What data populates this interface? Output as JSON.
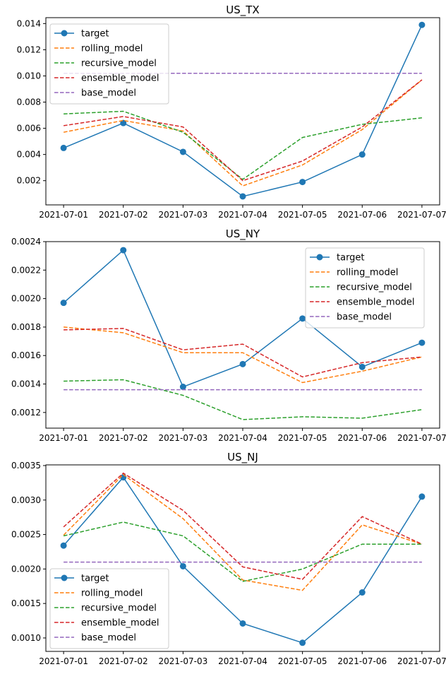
{
  "chart_data": [
    {
      "type": "line",
      "title": "US_TX",
      "legend_position": "upper-left",
      "x": [
        "2021-07-01",
        "2021-07-02",
        "2021-07-03",
        "2021-07-04",
        "2021-07-05",
        "2021-07-06",
        "2021-07-07"
      ],
      "ylim": [
        0.00015,
        0.01445
      ],
      "yticks": [
        0.002,
        0.004,
        0.006,
        0.008,
        0.01,
        0.012,
        0.014
      ],
      "ytick_labels": [
        "0.002",
        "0.004",
        "0.006",
        "0.008",
        "0.010",
        "0.012",
        "0.014"
      ],
      "series": [
        {
          "name": "target",
          "style": "solid-marker",
          "color": "#1f77b4",
          "values": [
            0.0045,
            0.0064,
            0.0042,
            0.0008,
            0.0019,
            0.004,
            0.0139
          ]
        },
        {
          "name": "rolling_model",
          "style": "dashed",
          "color": "#ff7f0e",
          "values": [
            0.0057,
            0.0066,
            0.0058,
            0.0016,
            0.0032,
            0.0059,
            0.0097
          ]
        },
        {
          "name": "recursive_model",
          "style": "dashed",
          "color": "#2ca02c",
          "values": [
            0.0071,
            0.0073,
            0.0057,
            0.0021,
            0.0053,
            0.0063,
            0.0068
          ]
        },
        {
          "name": "ensemble_model",
          "style": "dashed",
          "color": "#d62728",
          "values": [
            0.0062,
            0.0069,
            0.0061,
            0.002,
            0.0035,
            0.0061,
            0.0097
          ]
        },
        {
          "name": "base_model",
          "style": "dashed",
          "color": "#9467bd",
          "values": [
            0.0102,
            0.0102,
            0.0102,
            0.0102,
            0.0102,
            0.0102,
            0.0102
          ]
        }
      ]
    },
    {
      "type": "line",
      "title": "US_NY",
      "legend_position": "upper-right",
      "x": [
        "2021-07-01",
        "2021-07-02",
        "2021-07-03",
        "2021-07-04",
        "2021-07-05",
        "2021-07-06",
        "2021-07-07"
      ],
      "ylim": [
        0.00109,
        0.0024
      ],
      "yticks": [
        0.0012,
        0.0014,
        0.0016,
        0.0018,
        0.002,
        0.0022,
        0.0024
      ],
      "ytick_labels": [
        "0.0012",
        "0.0014",
        "0.0016",
        "0.0018",
        "0.0020",
        "0.0022",
        "0.0024"
      ],
      "series": [
        {
          "name": "target",
          "style": "solid-marker",
          "color": "#1f77b4",
          "values": [
            0.00197,
            0.00234,
            0.00138,
            0.00154,
            0.00186,
            0.00152,
            0.00169
          ]
        },
        {
          "name": "rolling_model",
          "style": "dashed",
          "color": "#ff7f0e",
          "values": [
            0.0018,
            0.00176,
            0.00162,
            0.00162,
            0.00141,
            0.00149,
            0.00159
          ]
        },
        {
          "name": "recursive_model",
          "style": "dashed",
          "color": "#2ca02c",
          "values": [
            0.00142,
            0.00143,
            0.00132,
            0.00115,
            0.00117,
            0.00116,
            0.00122
          ]
        },
        {
          "name": "ensemble_model",
          "style": "dashed",
          "color": "#d62728",
          "values": [
            0.00178,
            0.00179,
            0.00164,
            0.00168,
            0.00145,
            0.00155,
            0.00159
          ]
        },
        {
          "name": "base_model",
          "style": "dashed",
          "color": "#9467bd",
          "values": [
            0.00136,
            0.00136,
            0.00136,
            0.00136,
            0.00136,
            0.00136,
            0.00136
          ]
        }
      ]
    },
    {
      "type": "line",
      "title": "US_NJ",
      "legend_position": "lower-left",
      "x": [
        "2021-07-01",
        "2021-07-02",
        "2021-07-03",
        "2021-07-04",
        "2021-07-05",
        "2021-07-06",
        "2021-07-07"
      ],
      "ylim": [
        0.000805,
        0.00351
      ],
      "yticks": [
        0.001,
        0.0015,
        0.002,
        0.0025,
        0.003,
        0.0035
      ],
      "ytick_labels": [
        "0.0010",
        "0.0015",
        "0.0020",
        "0.0025",
        "0.0030",
        "0.0035"
      ],
      "series": [
        {
          "name": "target",
          "style": "solid-marker",
          "color": "#1f77b4",
          "values": [
            0.00234,
            0.00333,
            0.00204,
            0.00121,
            0.00093,
            0.00166,
            0.00305
          ]
        },
        {
          "name": "rolling_model",
          "style": "dashed",
          "color": "#ff7f0e",
          "values": [
            0.00249,
            0.00337,
            0.00273,
            0.00184,
            0.00169,
            0.00264,
            0.00236
          ]
        },
        {
          "name": "recursive_model",
          "style": "dashed",
          "color": "#2ca02c",
          "values": [
            0.00248,
            0.00268,
            0.00248,
            0.00182,
            0.002,
            0.00236,
            0.00236
          ]
        },
        {
          "name": "ensemble_model",
          "style": "dashed",
          "color": "#d62728",
          "values": [
            0.00261,
            0.00339,
            0.00285,
            0.00203,
            0.00185,
            0.00276,
            0.00236
          ]
        },
        {
          "name": "base_model",
          "style": "dashed",
          "color": "#9467bd",
          "values": [
            0.0021,
            0.0021,
            0.0021,
            0.0021,
            0.0021,
            0.0021,
            0.0021
          ]
        }
      ]
    }
  ]
}
